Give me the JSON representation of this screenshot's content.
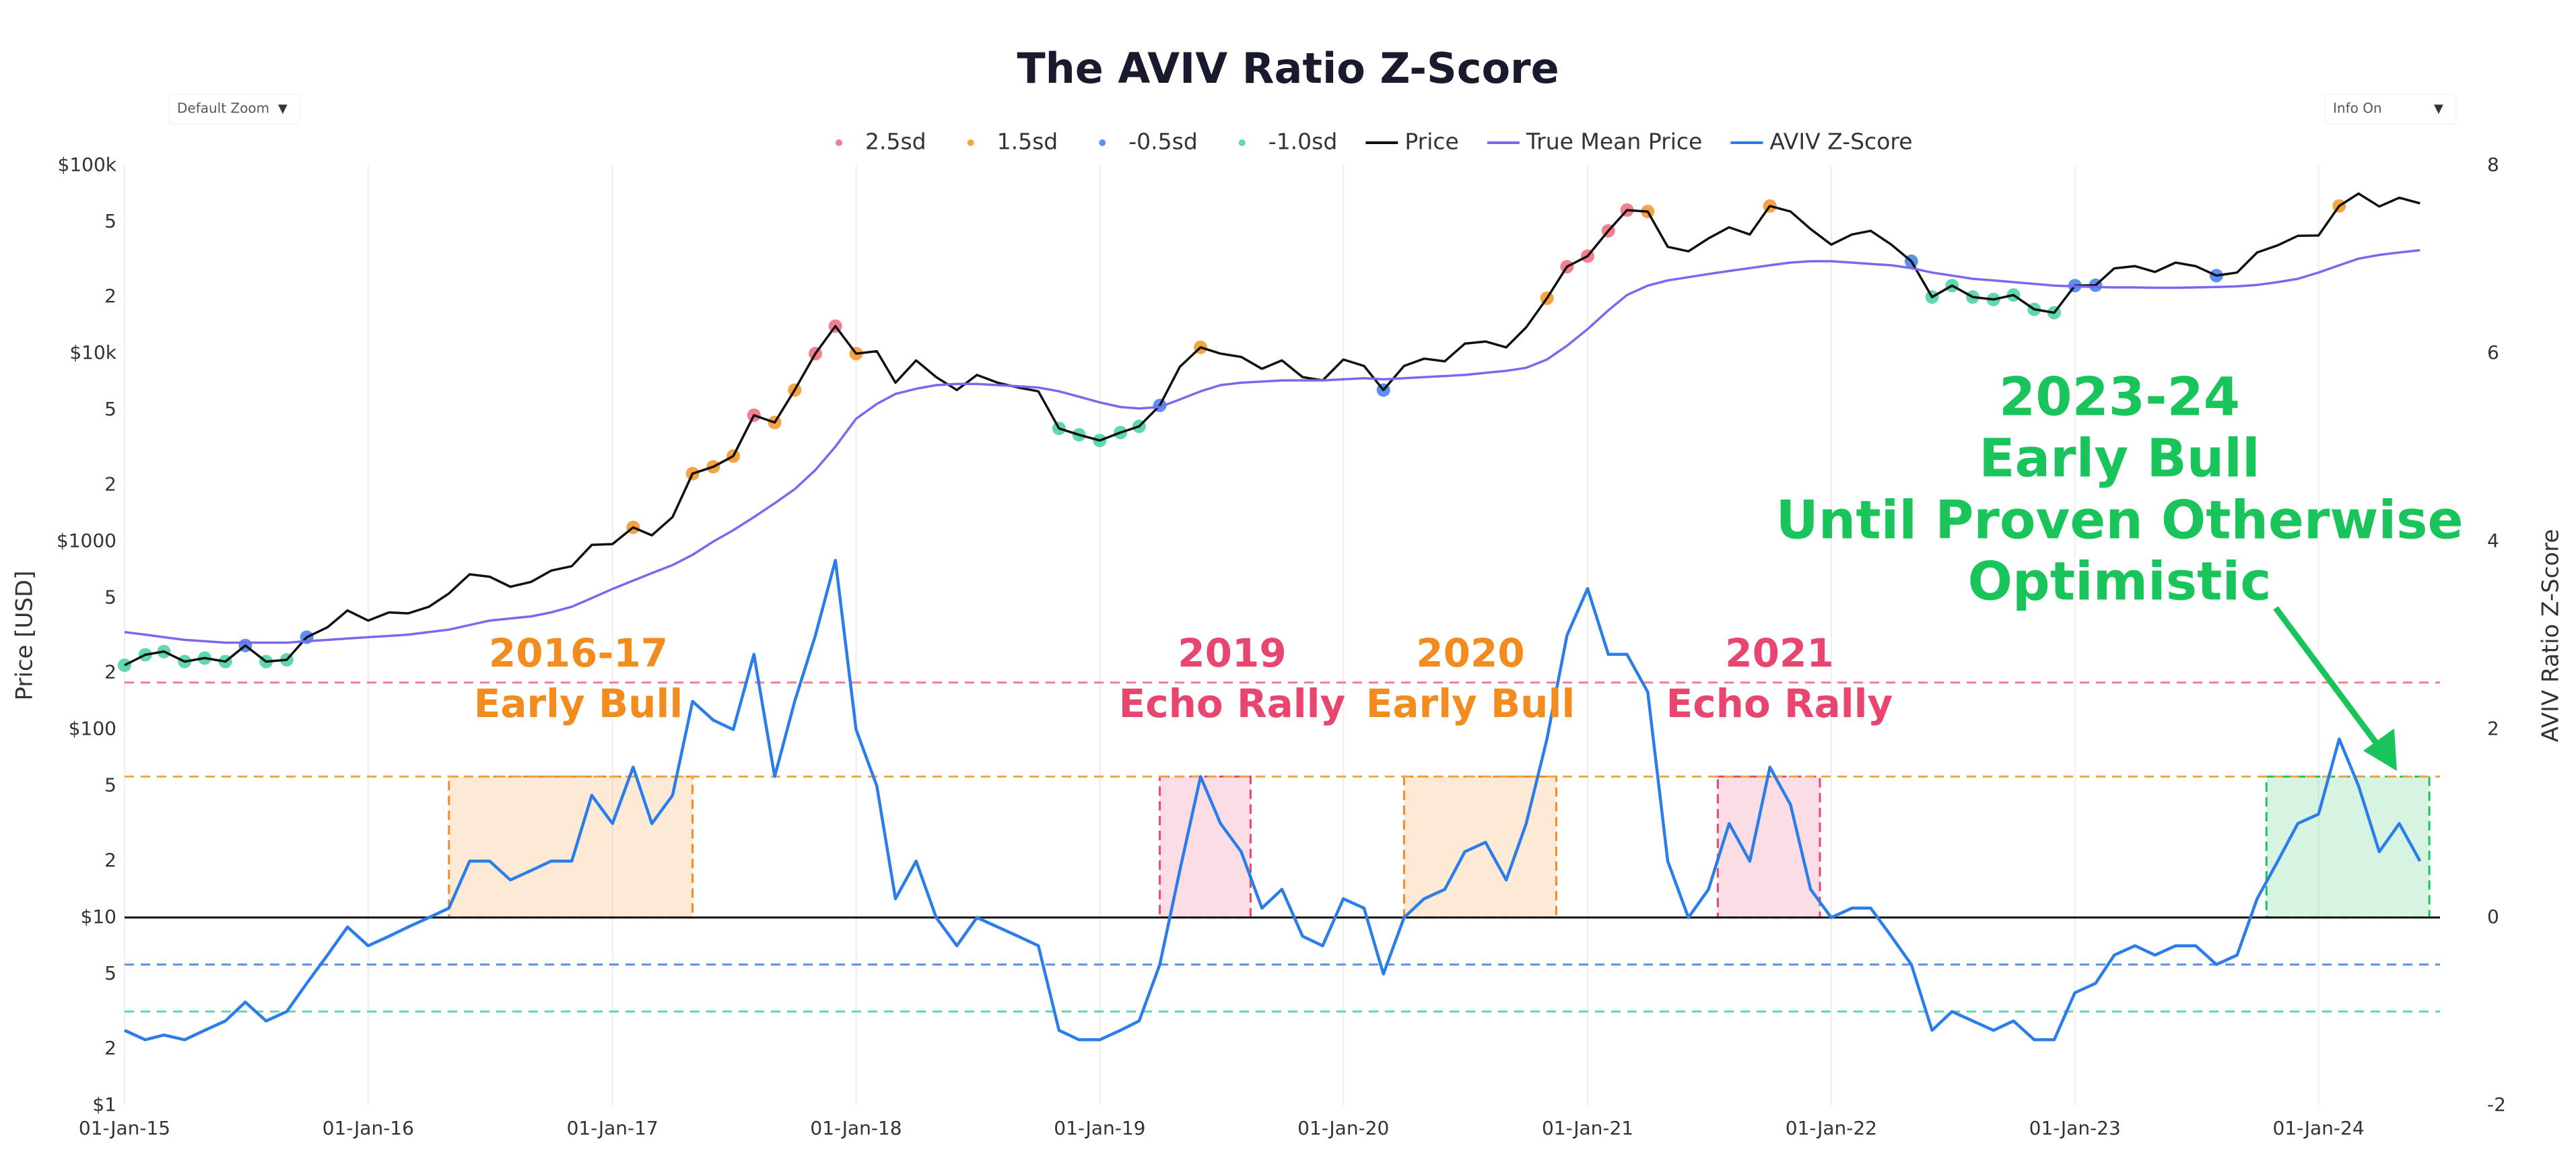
{
  "chart_data": {
    "type": "line",
    "title": "The AVIV Ratio Z-Score",
    "controls": [
      {
        "label": "Default Zoom",
        "arrow": "▼"
      },
      {
        "label": "Info On",
        "arrow": "▼"
      }
    ],
    "y_label": "Price [USD]",
    "y2_label": "AVIV Ratio Z-Score",
    "log_y": true,
    "grid": true,
    "x": [
      "2015-01-01",
      "2015-02-01",
      "2015-03-01",
      "2015-04-01",
      "2015-05-01",
      "2015-06-01",
      "2015-07-01",
      "2015-08-01",
      "2015-09-01",
      "2015-10-01",
      "2015-11-01",
      "2015-12-01",
      "2016-01-01",
      "2016-02-01",
      "2016-03-01",
      "2016-04-01",
      "2016-05-01",
      "2016-06-01",
      "2016-07-01",
      "2016-08-01",
      "2016-09-01",
      "2016-10-01",
      "2016-11-01",
      "2016-12-01",
      "2017-01-01",
      "2017-02-01",
      "2017-03-01",
      "2017-04-01",
      "2017-05-01",
      "2017-06-01",
      "2017-07-01",
      "2017-08-01",
      "2017-09-01",
      "2017-10-01",
      "2017-11-01",
      "2017-12-01",
      "2018-01-01",
      "2018-02-01",
      "2018-03-01",
      "2018-04-01",
      "2018-05-01",
      "2018-06-01",
      "2018-07-01",
      "2018-08-01",
      "2018-09-01",
      "2018-10-01",
      "2018-11-01",
      "2018-12-01",
      "2019-01-01",
      "2019-02-01",
      "2019-03-01",
      "2019-04-01",
      "2019-05-01",
      "2019-06-01",
      "2019-07-01",
      "2019-08-01",
      "2019-09-01",
      "2019-10-01",
      "2019-11-01",
      "2019-12-01",
      "2020-01-01",
      "2020-02-01",
      "2020-03-01",
      "2020-04-01",
      "2020-05-01",
      "2020-06-01",
      "2020-07-01",
      "2020-08-01",
      "2020-09-01",
      "2020-10-01",
      "2020-11-01",
      "2020-12-01",
      "2021-01-01",
      "2021-02-01",
      "2021-03-01",
      "2021-04-01",
      "2021-05-01",
      "2021-06-01",
      "2021-07-01",
      "2021-08-01",
      "2021-09-01",
      "2021-10-01",
      "2021-11-01",
      "2021-12-01",
      "2022-01-01",
      "2022-02-01",
      "2022-03-01",
      "2022-04-01",
      "2022-05-01",
      "2022-06-01",
      "2022-07-01",
      "2022-08-01",
      "2022-09-01",
      "2022-10-01",
      "2022-11-01",
      "2022-12-01",
      "2023-01-01",
      "2023-02-01",
      "2023-03-01",
      "2023-04-01",
      "2023-05-01",
      "2023-06-01",
      "2023-07-01",
      "2023-08-01",
      "2023-09-01",
      "2023-10-01",
      "2023-11-01",
      "2023-12-01",
      "2024-01-01",
      "2024-02-01",
      "2024-03-01",
      "2024-04-01",
      "2024-05-01",
      "2024-06-01"
    ],
    "series": [
      {
        "name": "Price",
        "color": "#111111",
        "values": [
          220,
          250,
          260,
          230,
          240,
          230,
          280,
          230,
          235,
          310,
          350,
          430,
          380,
          420,
          415,
          450,
          530,
          670,
          650,
          575,
          610,
          700,
          740,
          960,
          970,
          1190,
          1080,
          1350,
          2300,
          2500,
          2850,
          4700,
          4300,
          6400,
          10000,
          14000,
          10000,
          10300,
          7000,
          9200,
          7500,
          6400,
          7700,
          7000,
          6600,
          6300,
          4000,
          3700,
          3450,
          3800,
          4100,
          5300,
          8500,
          10800,
          10000,
          9600,
          8300,
          9200,
          7500,
          7200,
          9300,
          8600,
          6400,
          8600,
          9400,
          9100,
          11300,
          11600,
          10800,
          13800,
          19700,
          29000,
          33000,
          45000,
          58000,
          57000,
          37000,
          35000,
          41000,
          47000,
          43000,
          61000,
          57000,
          46000,
          38000,
          43000,
          45000,
          38000,
          31000,
          20000,
          23000,
          20000,
          19400,
          20500,
          17200,
          16500,
          23000,
          23100,
          28400,
          29200,
          27200,
          30500,
          29200,
          26000,
          27000,
          34500,
          37700,
          42300,
          42500,
          61000,
          71000,
          60600,
          67500,
          63000
        ]
      },
      {
        "name": "True Mean Price",
        "color": "#7b68ee",
        "values": [
          330,
          320,
          310,
          300,
          295,
          290,
          290,
          290,
          290,
          295,
          300,
          305,
          310,
          315,
          320,
          330,
          340,
          360,
          380,
          390,
          400,
          420,
          450,
          500,
          560,
          620,
          680,
          750,
          850,
          1000,
          1150,
          1350,
          1600,
          1900,
          2400,
          3200,
          4500,
          5400,
          6100,
          6500,
          6800,
          6900,
          6900,
          6800,
          6700,
          6600,
          6300,
          5900,
          5500,
          5200,
          5100,
          5200,
          5700,
          6300,
          6800,
          7000,
          7100,
          7200,
          7200,
          7200,
          7300,
          7400,
          7300,
          7400,
          7500,
          7600,
          7700,
          7900,
          8100,
          8400,
          9300,
          11000,
          13500,
          17000,
          20500,
          23000,
          24500,
          25500,
          26500,
          27500,
          28500,
          29500,
          30500,
          31000,
          31000,
          30500,
          30000,
          29500,
          28500,
          27000,
          26000,
          25000,
          24500,
          24000,
          23500,
          23000,
          22800,
          22600,
          22500,
          22500,
          22400,
          22400,
          22500,
          22600,
          22800,
          23200,
          24000,
          25000,
          27000,
          29500,
          32000,
          33500,
          34500,
          35500
        ]
      },
      {
        "name": "AVIV Z-Score",
        "color": "#2b7de9",
        "axis": "y2",
        "values": [
          -1.2,
          -1.3,
          -1.25,
          -1.3,
          -1.2,
          -1.1,
          -0.9,
          -1.1,
          -1.0,
          -0.7,
          -0.4,
          -0.1,
          -0.3,
          -0.2,
          -0.1,
          0.0,
          0.1,
          0.6,
          0.6,
          0.4,
          0.5,
          0.6,
          0.6,
          1.3,
          1.0,
          1.6,
          1.0,
          1.3,
          2.3,
          2.1,
          2.0,
          2.8,
          1.5,
          2.3,
          3.0,
          3.8,
          2.0,
          1.4,
          0.2,
          0.6,
          0.0,
          -0.3,
          0.0,
          -0.1,
          -0.2,
          -0.3,
          -1.2,
          -1.3,
          -1.3,
          -1.2,
          -1.1,
          -0.5,
          0.5,
          1.5,
          1.0,
          0.7,
          0.1,
          0.3,
          -0.2,
          -0.3,
          0.2,
          0.1,
          -0.6,
          0.0,
          0.2,
          0.3,
          0.7,
          0.8,
          0.4,
          1.0,
          1.9,
          3.0,
          3.5,
          2.8,
          2.8,
          2.4,
          0.6,
          0.0,
          0.3,
          1.0,
          0.6,
          1.6,
          1.2,
          0.3,
          0.0,
          0.1,
          0.1,
          -0.2,
          -0.5,
          -1.2,
          -1.0,
          -1.1,
          -1.2,
          -1.1,
          -1.3,
          -1.3,
          -0.8,
          -0.7,
          -0.4,
          -0.3,
          -0.4,
          -0.3,
          -0.3,
          -0.5,
          -0.4,
          0.2,
          0.6,
          1.0,
          1.1,
          1.9,
          1.4,
          0.7,
          1.0,
          0.6
        ]
      }
    ],
    "bands": [
      {
        "name": "2.5sd",
        "color": "#f07f8f",
        "level": 2.5
      },
      {
        "name": "1.5sd",
        "color": "#f5a442",
        "level": 1.5
      },
      {
        "name": "-0.5sd",
        "color": "#5b8ff0",
        "level": -0.5
      },
      {
        "name": "-1.0sd",
        "color": "#5fd8b0",
        "level": -1.0
      }
    ],
    "annotations": [
      {
        "lines": [
          "2016-17",
          "Early Bull"
        ],
        "color": "#f28c1e",
        "x_range": [
          "2016-05-01",
          "2017-05-01"
        ],
        "y2_range": [
          0,
          1.5
        ]
      },
      {
        "lines": [
          "2019",
          "Echo Rally"
        ],
        "color": "#e8466e",
        "x_range": [
          "2019-04-01",
          "2019-08-15"
        ],
        "y2_range": [
          0,
          1.5
        ]
      },
      {
        "lines": [
          "2020",
          "Early Bull"
        ],
        "color": "#f28c1e",
        "x_range": [
          "2020-04-01",
          "2020-11-15"
        ],
        "y2_range": [
          0,
          1.5
        ]
      },
      {
        "lines": [
          "2021",
          "Echo Rally"
        ],
        "color": "#e8466e",
        "x_range": [
          "2021-07-15",
          "2021-12-15"
        ],
        "y2_range": [
          0,
          1.5
        ]
      },
      {
        "lines": [
          "2023-24",
          "Early Bull",
          "Until Proven Otherwise",
          "Optimistic"
        ],
        "color": "#19c45a",
        "x_range": [
          "2023-10-15",
          "2024-06-15"
        ],
        "y2_range": [
          0,
          1.5
        ]
      }
    ],
    "xlim": [
      "2015-01-01",
      "2024-07-01"
    ],
    "xticks": [
      {
        "value": "2015-01-01",
        "label": "01-Jan-15"
      },
      {
        "value": "2016-01-01",
        "label": "01-Jan-16"
      },
      {
        "value": "2017-01-01",
        "label": "01-Jan-17"
      },
      {
        "value": "2018-01-01",
        "label": "01-Jan-18"
      },
      {
        "value": "2019-01-01",
        "label": "01-Jan-19"
      },
      {
        "value": "2020-01-01",
        "label": "01-Jan-20"
      },
      {
        "value": "2021-01-01",
        "label": "01-Jan-21"
      },
      {
        "value": "2022-01-01",
        "label": "01-Jan-22"
      },
      {
        "value": "2023-01-01",
        "label": "01-Jan-23"
      },
      {
        "value": "2024-01-01",
        "label": "01-Jan-24"
      }
    ],
    "ylim": [
      1,
      100000
    ],
    "yticks": [
      {
        "value": 1,
        "label": "$1"
      },
      2,
      5,
      {
        "value": 10,
        "label": "$10"
      },
      {
        "value": 20,
        "label": "2"
      },
      {
        "value": 50,
        "label": "5"
      },
      {
        "value": 100,
        "label": "$100"
      },
      {
        "value": 200,
        "label": "2"
      },
      {
        "value": 500,
        "label": "5"
      },
      {
        "value": 1000,
        "label": "$1000"
      },
      {
        "value": 2000,
        "label": "2"
      },
      {
        "value": 5000,
        "label": "5"
      },
      {
        "value": 10000,
        "label": "$10k"
      },
      {
        "value": 20000,
        "label": "2"
      },
      {
        "value": 50000,
        "label": "5"
      },
      {
        "value": 100000,
        "label": "$100k"
      }
    ],
    "y2lim": [
      -2,
      8
    ],
    "y2ticks": [
      -2,
      0,
      2,
      4,
      6,
      8
    ]
  }
}
